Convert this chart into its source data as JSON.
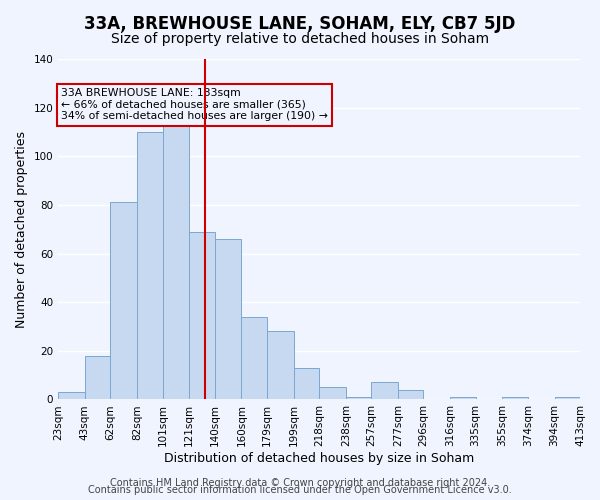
{
  "title": "33A, BREWHOUSE LANE, SOHAM, ELY, CB7 5JD",
  "subtitle": "Size of property relative to detached houses in Soham",
  "xlabel": "Distribution of detached houses by size in Soham",
  "ylabel": "Number of detached properties",
  "bar_edges": [
    23,
    43,
    62,
    82,
    101,
    121,
    140,
    160,
    179,
    199,
    218,
    238,
    257,
    277,
    296,
    316,
    335,
    355,
    374,
    394,
    413
  ],
  "bar_heights": [
    3,
    18,
    81,
    110,
    114,
    69,
    66,
    34,
    28,
    13,
    5,
    1,
    7,
    4,
    0,
    1,
    0,
    1,
    0,
    1
  ],
  "bar_color": "#c6d9f1",
  "bar_edge_color": "#7ba7d0",
  "vline_x": 133,
  "vline_color": "#cc0000",
  "annotation_text": "33A BREWHOUSE LANE: 133sqm\n← 66% of detached houses are smaller (365)\n34% of semi-detached houses are larger (190) →",
  "annotation_box_edge_color": "#cc0000",
  "ylim": [
    0,
    140
  ],
  "yticks": [
    0,
    20,
    40,
    60,
    80,
    100,
    120,
    140
  ],
  "tick_labels": [
    "23sqm",
    "43sqm",
    "62sqm",
    "82sqm",
    "101sqm",
    "121sqm",
    "140sqm",
    "160sqm",
    "179sqm",
    "199sqm",
    "218sqm",
    "238sqm",
    "257sqm",
    "277sqm",
    "296sqm",
    "316sqm",
    "335sqm",
    "355sqm",
    "374sqm",
    "394sqm",
    "413sqm"
  ],
  "footer_line1": "Contains HM Land Registry data © Crown copyright and database right 2024.",
  "footer_line2": "Contains public sector information licensed under the Open Government Licence v3.0.",
  "background_color": "#f0f4ff",
  "grid_color": "#ffffff",
  "title_fontsize": 12,
  "subtitle_fontsize": 10,
  "axis_label_fontsize": 9,
  "tick_fontsize": 7.5,
  "footer_fontsize": 7
}
